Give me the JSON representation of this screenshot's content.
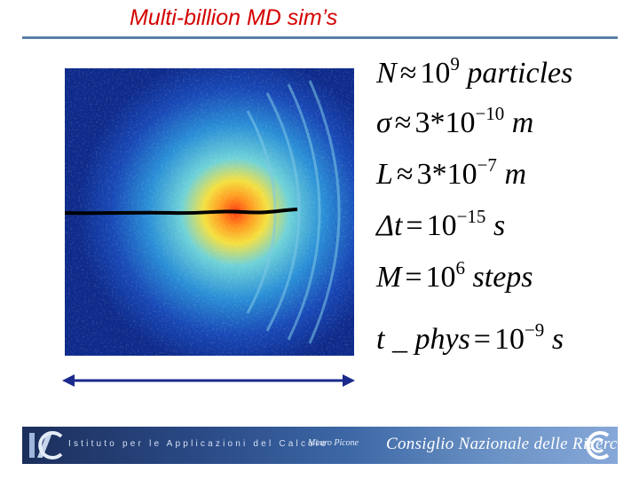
{
  "slide": {
    "title": "Multi-billion MD sim’s"
  },
  "equations": [
    {
      "lhs": "N",
      "op": "≈",
      "num": "10",
      "exp": "9",
      "unit": "particles"
    },
    {
      "lhs": "σ",
      "op": "≈",
      "num": "3*10",
      "exp": "−10",
      "unit": "m"
    },
    {
      "lhs": "L",
      "op": "≈",
      "num": "3*10",
      "exp": "−7",
      "unit": "m"
    },
    {
      "lhs": "Δt",
      "op": "=",
      "num": "10",
      "exp": "−15",
      "unit": "s"
    },
    {
      "lhs": "M",
      "op": "=",
      "num": "10",
      "exp": "6",
      "unit": "steps"
    },
    {
      "lhs": "t _ phys",
      "op": "=",
      "num": "10",
      "exp": "−9",
      "unit": "s"
    }
  ],
  "footer": {
    "institute": "Istituto per le Applicazioni del Calcolo",
    "signature": "Mauro Picone",
    "cnr": "Consiglio Nazionale delle Ricerche"
  },
  "colors": {
    "title": "#d40000",
    "rule": "#5b7ea8",
    "arrow": "#1a2a8c"
  }
}
